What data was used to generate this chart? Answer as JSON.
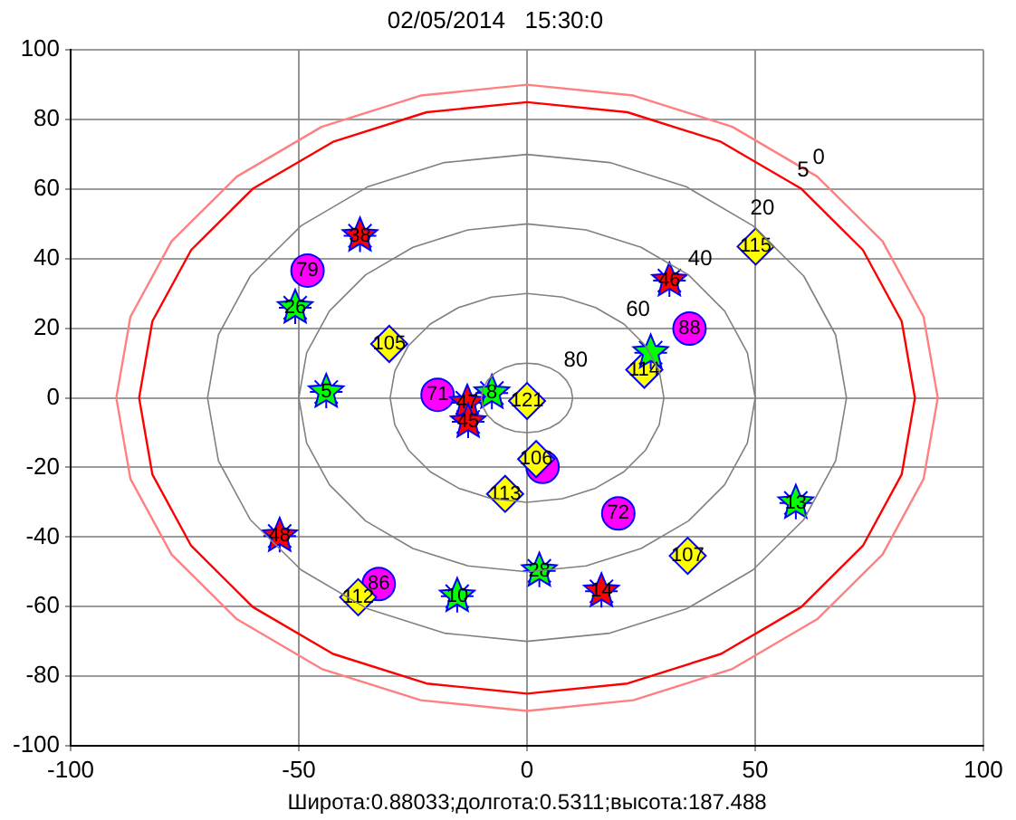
{
  "chart_data": {
    "type": "scatter",
    "title": "02/05/2014   15:30:0",
    "xlabel": "Широта:0.88033;долгота:0.5311;высота:187.488",
    "xlim": [
      -100,
      100
    ],
    "xticks": [
      -100,
      -50,
      0,
      50,
      100
    ],
    "ylim": [
      -100,
      100
    ],
    "yticks": [
      -100,
      -80,
      -60,
      -40,
      -20,
      0,
      20,
      40,
      60,
      80,
      100
    ],
    "grid": true,
    "legend": false,
    "annotations": [
      "0",
      "5",
      "20",
      "40",
      "60",
      "80",
      {
        "text": "79",
        "x": -48.1,
        "y": 36.6
      },
      {
        "text": "71",
        "x": -19.6,
        "y": 0.9
      },
      {
        "text": "88",
        "x": 35.6,
        "y": 19.9
      },
      {
        "text": "72",
        "x": 20,
        "y": -33.2
      },
      {
        "text": "86",
        "x": -32.5,
        "y": -53.5
      },
      {
        "text": "115",
        "x": 50.1,
        "y": 43.5
      },
      {
        "text": "105",
        "x": -30.2,
        "y": 15.5
      },
      {
        "text": "121",
        "x": 0,
        "y": -0.9
      },
      {
        "text": "114",
        "x": 25.7,
        "y": 8.1
      },
      {
        "text": "106",
        "x": 2,
        "y": -17.6
      },
      {
        "text": "113",
        "x": -4.8,
        "y": -27.6
      },
      {
        "text": "112",
        "x": -37,
        "y": -57.3
      },
      {
        "text": "107",
        "x": 35.2,
        "y": -45.4
      },
      {
        "text": "26",
        "x": -50.8,
        "y": 25.9
      },
      {
        "text": "5",
        "x": -44,
        "y": 1.7
      },
      {
        "text": "8",
        "x": -7.7,
        "y": 1.4
      },
      {
        "text": "10",
        "x": -15.3,
        "y": -57
      },
      {
        "text": "28",
        "x": 2.7,
        "y": -49.7
      },
      {
        "text": "13",
        "x": 58.9,
        "y": -30.2
      },
      {
        "text": "38",
        "x": -36.6,
        "y": 46.6
      },
      {
        "text": "46",
        "x": 31.2,
        "y": 33.7
      },
      {
        "text": "47",
        "x": -13.1,
        "y": -1.4
      },
      {
        "text": "45",
        "x": -12.9,
        "y": -6.9
      },
      {
        "text": "48",
        "x": -54.2,
        "y": -39.7
      },
      {
        "text": "14",
        "x": 16.3,
        "y": -55.6
      }
    ],
    "series": [
      {
        "type": "line",
        "marker": "none",
        "color": "#ff8080",
        "x": [
          -90,
          -86.9,
          -77.9,
          -63.6,
          -45,
          -23.3,
          0,
          23.3,
          45,
          63.6,
          77.9,
          86.9,
          90,
          null,
          -90,
          -86.9,
          -77.9,
          -63.6,
          -45,
          -23.3,
          0,
          23.3,
          45,
          63.6,
          77.9,
          86.9,
          90
        ],
        "values": [
          0,
          23.3,
          45,
          63.6,
          77.9,
          86.9,
          90,
          86.9,
          77.9,
          63.6,
          45,
          23.3,
          0,
          null,
          0,
          -23.3,
          -45,
          -63.6,
          -77.9,
          -86.9,
          -90,
          -86.9,
          -77.9,
          -63.6,
          -45,
          -23.3,
          0
        ]
      },
      {
        "type": "line",
        "marker": "none",
        "color": "#ff0000",
        "x": [
          -85,
          -82.1,
          -73.6,
          -60.1,
          -42.5,
          -22,
          0,
          22,
          42.5,
          60.1,
          73.6,
          82.1,
          85,
          null,
          -85,
          -82.1,
          -73.6,
          -60.1,
          -42.5,
          -22,
          0,
          22,
          42.5,
          60.1,
          73.6,
          82.1,
          85
        ],
        "values": [
          0,
          22,
          42.5,
          60.1,
          73.6,
          82.1,
          85,
          82.1,
          73.6,
          60.1,
          42.5,
          22,
          0,
          null,
          0,
          -22,
          -42.5,
          -60.1,
          -73.6,
          -82.1,
          -85,
          -82.1,
          -73.6,
          -60.1,
          -42.5,
          -22,
          0
        ]
      },
      {
        "type": "scatter",
        "marker": "circle",
        "color": "#ff00ff",
        "x": [
          -48.1,
          -19.6,
          35.6,
          3.4,
          20,
          -32.5
        ],
        "values": [
          36.6,
          0.9,
          19.9,
          -19.8,
          -33.2,
          -53.5
        ]
      },
      {
        "type": "scatter",
        "marker": "diamond",
        "color": "#ffff00",
        "x": [
          50.1,
          -30.2,
          0,
          25.7,
          2,
          -4.8,
          -37,
          35.2
        ],
        "values": [
          43.5,
          15.5,
          -0.9,
          8.1,
          -17.6,
          -27.6,
          -57.3,
          -45.4
        ]
      },
      {
        "type": "scatter",
        "marker": "star",
        "color": "#00ff00",
        "x": [
          -50.8,
          -44,
          -7.7,
          27.1,
          -15.3,
          2.7,
          58.9
        ],
        "values": [
          25.9,
          1.7,
          1.4,
          13,
          -57,
          -49.7,
          -30.2
        ]
      },
      {
        "type": "scatter",
        "marker": "star",
        "color": "#ff0000",
        "x": [
          -36.6,
          31.2,
          -13.1,
          -12.9,
          -54.2,
          16.3
        ],
        "values": [
          46.6,
          33.7,
          -1.4,
          -6.9,
          -39.7,
          -55.6
        ]
      }
    ]
  }
}
